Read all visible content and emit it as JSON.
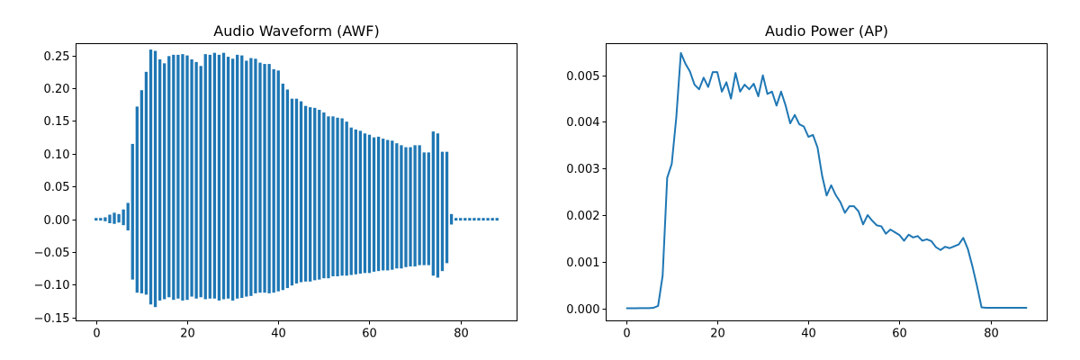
{
  "colors": {
    "series": "#1f77b4",
    "axes": "#000000",
    "background": "#ffffff"
  },
  "chart_data": [
    {
      "type": "bar",
      "title": "Audio Waveform (AWF)",
      "xlabel": "",
      "ylabel": "",
      "grid": false,
      "xlim": [
        -4.4,
        92.4
      ],
      "ylim": [
        -0.155,
        0.268
      ],
      "xticks": [
        0,
        20,
        40,
        60,
        80
      ],
      "yticks": [
        -0.15,
        -0.1,
        -0.05,
        0.0,
        0.05,
        0.1,
        0.15,
        0.2,
        0.25
      ],
      "ytick_labels": [
        "−0.15",
        "−0.10",
        "−0.05",
        "0.00",
        "0.05",
        "0.10",
        "0.15",
        "0.20",
        "0.25"
      ],
      "x": [
        0,
        1,
        2,
        3,
        4,
        5,
        6,
        7,
        8,
        9,
        10,
        11,
        12,
        13,
        14,
        15,
        16,
        17,
        18,
        19,
        20,
        21,
        22,
        23,
        24,
        25,
        26,
        27,
        28,
        29,
        30,
        31,
        32,
        33,
        34,
        35,
        36,
        37,
        38,
        39,
        40,
        41,
        42,
        43,
        44,
        45,
        46,
        47,
        48,
        49,
        50,
        51,
        52,
        53,
        54,
        55,
        56,
        57,
        58,
        59,
        60,
        61,
        62,
        63,
        64,
        65,
        66,
        67,
        68,
        69,
        70,
        71,
        72,
        73,
        74,
        75,
        76,
        77,
        78,
        79,
        80,
        81,
        82,
        83,
        84,
        85,
        86,
        87,
        88
      ],
      "series": [
        {
          "values_max": [
            0.002,
            0.002,
            0.003,
            0.007,
            0.01,
            0.008,
            0.015,
            0.025,
            0.115,
            0.172,
            0.197,
            0.225,
            0.259,
            0.257,
            0.244,
            0.238,
            0.249,
            0.251,
            0.251,
            0.252,
            0.25,
            0.244,
            0.24,
            0.234,
            0.252,
            0.251,
            0.254,
            0.251,
            0.254,
            0.248,
            0.245,
            0.251,
            0.25,
            0.242,
            0.246,
            0.245,
            0.239,
            0.237,
            0.237,
            0.229,
            0.227,
            0.207,
            0.198,
            0.184,
            0.184,
            0.18,
            0.173,
            0.171,
            0.17,
            0.167,
            0.163,
            0.157,
            0.157,
            0.155,
            0.154,
            0.149,
            0.14,
            0.137,
            0.135,
            0.131,
            0.129,
            0.125,
            0.126,
            0.123,
            0.121,
            0.12,
            0.116,
            0.113,
            0.11,
            0.11,
            0.113,
            0.113,
            0.102,
            0.102,
            0.134,
            0.131,
            0.103,
            0.103,
            0.008,
            0.002,
            0.002,
            0.002,
            0.002,
            0.002,
            0.002,
            0.002,
            0.002,
            0.002,
            0.002
          ],
          "values_min": [
            -0.002,
            -0.002,
            -0.003,
            -0.006,
            -0.007,
            -0.005,
            -0.009,
            -0.017,
            -0.092,
            -0.112,
            -0.113,
            -0.115,
            -0.13,
            -0.134,
            -0.124,
            -0.122,
            -0.119,
            -0.123,
            -0.121,
            -0.124,
            -0.123,
            -0.118,
            -0.121,
            -0.119,
            -0.122,
            -0.121,
            -0.121,
            -0.124,
            -0.122,
            -0.121,
            -0.124,
            -0.121,
            -0.12,
            -0.118,
            -0.117,
            -0.113,
            -0.112,
            -0.112,
            -0.113,
            -0.112,
            -0.11,
            -0.108,
            -0.105,
            -0.101,
            -0.098,
            -0.096,
            -0.095,
            -0.095,
            -0.093,
            -0.092,
            -0.09,
            -0.09,
            -0.087,
            -0.087,
            -0.086,
            -0.086,
            -0.085,
            -0.084,
            -0.083,
            -0.082,
            -0.082,
            -0.08,
            -0.079,
            -0.078,
            -0.078,
            -0.077,
            -0.075,
            -0.075,
            -0.073,
            -0.072,
            -0.072,
            -0.07,
            -0.07,
            -0.07,
            -0.086,
            -0.089,
            -0.079,
            -0.067,
            -0.008,
            -0.002,
            -0.002,
            -0.002,
            -0.002,
            -0.002,
            -0.002,
            -0.002,
            -0.002,
            -0.002,
            -0.002
          ]
        }
      ]
    },
    {
      "type": "line",
      "title": "Audio Power (AP)",
      "xlabel": "",
      "ylabel": "",
      "grid": false,
      "xlim": [
        -4.4,
        92.4
      ],
      "ylim": [
        -0.00027,
        0.00568
      ],
      "xticks": [
        0,
        20,
        40,
        60,
        80
      ],
      "yticks": [
        0.0,
        0.001,
        0.002,
        0.003,
        0.004,
        0.005
      ],
      "ytick_labels": [
        "0.000",
        "0.001",
        "0.002",
        "0.003",
        "0.004",
        "0.005"
      ],
      "x": [
        0,
        1,
        2,
        3,
        4,
        5,
        6,
        7,
        8,
        9,
        10,
        11,
        12,
        13,
        14,
        15,
        16,
        17,
        18,
        19,
        20,
        21,
        22,
        23,
        24,
        25,
        26,
        27,
        28,
        29,
        30,
        31,
        32,
        33,
        34,
        35,
        36,
        37,
        38,
        39,
        40,
        41,
        42,
        43,
        44,
        45,
        46,
        47,
        48,
        49,
        50,
        51,
        52,
        53,
        54,
        55,
        56,
        57,
        58,
        59,
        60,
        61,
        62,
        63,
        64,
        65,
        66,
        67,
        68,
        69,
        70,
        71,
        72,
        73,
        74,
        75,
        76,
        77,
        78,
        79,
        80,
        81,
        82,
        83,
        84,
        85,
        86,
        87,
        88
      ],
      "series": [
        {
          "values": [
            0.0,
            1e-06,
            1e-06,
            2e-06,
            2e-06,
            2e-06,
            1e-05,
            5e-05,
            0.0007,
            0.0028,
            0.0031,
            0.0041,
            0.00548,
            0.00525,
            0.00508,
            0.0048,
            0.0047,
            0.00495,
            0.00475,
            0.00507,
            0.00507,
            0.00465,
            0.00485,
            0.0045,
            0.00505,
            0.00465,
            0.0048,
            0.0047,
            0.00482,
            0.00455,
            0.005,
            0.0046,
            0.00465,
            0.00435,
            0.00465,
            0.00435,
            0.00397,
            0.00415,
            0.00395,
            0.0039,
            0.00368,
            0.00372,
            0.00345,
            0.00285,
            0.00242,
            0.00264,
            0.00243,
            0.00228,
            0.00205,
            0.00219,
            0.00219,
            0.00208,
            0.0018,
            0.002,
            0.00188,
            0.00178,
            0.00176,
            0.0016,
            0.00169,
            0.00163,
            0.00157,
            0.00145,
            0.00158,
            0.00152,
            0.00155,
            0.00145,
            0.00148,
            0.00144,
            0.00131,
            0.00125,
            0.00132,
            0.00129,
            0.00133,
            0.00137,
            0.00151,
            0.00127,
            0.0009,
            0.00048,
            2e-05,
            1e-05,
            1e-05,
            1e-05,
            1e-05,
            1e-05,
            1e-05,
            1e-05,
            1e-05,
            1e-05,
            1e-05
          ]
        }
      ]
    }
  ]
}
